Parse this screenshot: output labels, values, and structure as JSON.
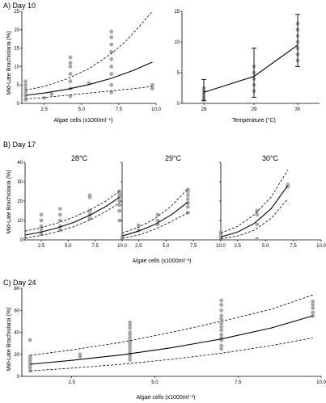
{
  "panels": {
    "A": {
      "label": "A) Day 10"
    },
    "B": {
      "label": "B) Day 17"
    },
    "C": {
      "label": "C) Day 24"
    }
  },
  "chart_data": [
    {
      "type": "scatter",
      "ylabel": "Mid-Late Brachiolaria (%)",
      "xlabel": "Algae cells (x1000ml⁻¹)",
      "xlim": [
        1.0,
        10.0
      ],
      "ylim": [
        0,
        25
      ],
      "xticks": [
        "2.5",
        "5.0",
        "7.5",
        "10.0"
      ],
      "yticks": [
        "0",
        "5",
        "10",
        "15",
        "20",
        "25"
      ],
      "points": [
        [
          1.25,
          1.0
        ],
        [
          1.25,
          2.0
        ],
        [
          1.25,
          3.0
        ],
        [
          1.25,
          4.0
        ],
        [
          1.25,
          5.0
        ],
        [
          1.25,
          6.0
        ],
        [
          2.5,
          1.5
        ],
        [
          3.0,
          2.5
        ],
        [
          4.25,
          2.0
        ],
        [
          4.25,
          4.0
        ],
        [
          4.25,
          6.0
        ],
        [
          4.25,
          8.0
        ],
        [
          4.25,
          10.0
        ],
        [
          4.25,
          11.0
        ],
        [
          4.25,
          12.5
        ],
        [
          5.5,
          5.5
        ],
        [
          7.0,
          3.0
        ],
        [
          7.0,
          5.0
        ],
        [
          7.0,
          8.0
        ],
        [
          7.0,
          10.0
        ],
        [
          7.0,
          12.0
        ],
        [
          7.0,
          14.0
        ],
        [
          7.0,
          16.0
        ],
        [
          7.0,
          18.0
        ],
        [
          7.0,
          19.5
        ],
        [
          9.75,
          4.0
        ],
        [
          9.75,
          5.0
        ]
      ],
      "fit": {
        "x": [
          1.25,
          2.5,
          4.0,
          5.5,
          7.0,
          8.5,
          9.75
        ],
        "y": [
          2.2,
          2.8,
          3.8,
          5.1,
          6.8,
          9.0,
          11.2
        ]
      },
      "upper": {
        "x": [
          1.25,
          2.5,
          4.0,
          5.5,
          7.0,
          8.0,
          9.0,
          9.75
        ],
        "y": [
          3.6,
          4.6,
          6.6,
          9.4,
          13.5,
          17.0,
          21.5,
          25.0
        ]
      },
      "lower": {
        "x": [
          1.25,
          2.5,
          4.0,
          5.5,
          7.0,
          8.5,
          9.75
        ],
        "y": [
          1.2,
          1.6,
          2.2,
          2.8,
          3.4,
          4.0,
          4.6
        ]
      }
    },
    {
      "type": "line",
      "xlabel": "Temperature (°C)",
      "categories": [
        "28",
        "29",
        "30"
      ],
      "ylim": [
        0,
        15
      ],
      "yticks": [
        "0",
        "5",
        "10",
        "15"
      ],
      "mean": [
        1.8,
        4.4,
        9.5
      ],
      "err_low": [
        0.5,
        1.0,
        6.0
      ],
      "err_high": [
        3.9,
        9.0,
        14.5
      ],
      "points": [
        [
          0,
          0.5
        ],
        [
          0,
          1.0
        ],
        [
          0,
          1.5
        ],
        [
          0,
          2.0
        ],
        [
          0,
          2.5
        ],
        [
          1,
          2.0
        ],
        [
          1,
          3.0
        ],
        [
          1,
          4.0
        ],
        [
          1,
          5.0
        ],
        [
          1,
          6.0
        ],
        [
          2,
          7.0
        ],
        [
          2,
          8.0
        ],
        [
          2,
          9.0
        ],
        [
          2,
          10.0
        ],
        [
          2,
          11.0
        ],
        [
          2,
          12.0
        ],
        [
          2,
          13.0
        ]
      ]
    },
    {
      "type": "scatter",
      "ylabel": "Mid-Late Brachiolaria (%)",
      "xlabel": "Algae cells (x1000ml⁻¹)",
      "subplots": [
        {
          "label": "28°C",
          "xlim": [
            1.0,
            10.0
          ],
          "xticks": [
            "2.5",
            "5.0",
            "7.5",
            "10.0"
          ],
          "points": [
            [
              1.0,
              0.5
            ],
            [
              2.5,
              3.0
            ],
            [
              2.5,
              5.0
            ],
            [
              2.5,
              7.0
            ],
            [
              2.5,
              10.0
            ],
            [
              2.5,
              13.0
            ],
            [
              4.25,
              5.0
            ],
            [
              4.25,
              7.0
            ],
            [
              4.25,
              10.0
            ],
            [
              4.25,
              13.0
            ],
            [
              4.25,
              16.0
            ],
            [
              7.0,
              11.0
            ],
            [
              7.0,
              13.0
            ],
            [
              7.0,
              15.0
            ],
            [
              7.0,
              22.0
            ],
            [
              7.0,
              23.0
            ],
            [
              9.75,
              10.0
            ],
            [
              9.75,
              15.0
            ],
            [
              9.75,
              18.0
            ],
            [
              9.75,
              20.0
            ],
            [
              9.75,
              22.0
            ],
            [
              9.75,
              23.0
            ],
            [
              9.75,
              24.0
            ],
            [
              9.75,
              25.0
            ]
          ],
          "fit": {
            "x": [
              1.0,
              2.5,
              4.0,
              5.5,
              7.0,
              8.5,
              9.75
            ],
            "y": [
              2.5,
              4.0,
              6.2,
              9.0,
              12.7,
              17.3,
              22.0
            ]
          },
          "upper": {
            "x": [
              1.0,
              2.5,
              4.0,
              5.5,
              7.0,
              8.5,
              9.75
            ],
            "y": [
              4.5,
              6.3,
              8.7,
              11.7,
              15.4,
              20.0,
              25.2
            ]
          },
          "lower": {
            "x": [
              1.0,
              2.5,
              4.0,
              5.5,
              7.0,
              8.5,
              9.75
            ],
            "y": [
              1.0,
              2.3,
              4.2,
              6.8,
              10.2,
              14.7,
              19.0
            ]
          }
        },
        {
          "label": "29°C",
          "xlim": [
            1.0,
            10.0
          ],
          "xticks": [
            "2.5",
            "5.0",
            "7.5",
            "10.0"
          ],
          "points": [
            [
              1.0,
              1.0
            ],
            [
              2.5,
              5.0
            ],
            [
              2.5,
              7.5
            ],
            [
              4.25,
              8.0
            ],
            [
              4.25,
              10.0
            ],
            [
              4.25,
              13.0
            ],
            [
              7.0,
              14.0
            ],
            [
              7.0,
              17.0
            ],
            [
              7.0,
              19.0
            ],
            [
              7.0,
              21.0
            ],
            [
              7.0,
              23.0
            ],
            [
              7.0,
              25.0
            ],
            [
              7.0,
              26.0
            ]
          ],
          "fit": {
            "x": [
              1.0,
              2.5,
              4.0,
              5.5,
              7.0
            ],
            "y": [
              2.0,
              4.5,
              8.0,
              13.0,
              19.5
            ]
          },
          "upper": {
            "x": [
              1.0,
              2.5,
              4.0,
              5.5,
              7.0
            ],
            "y": [
              3.5,
              6.5,
              11.0,
              17.5,
              26.5
            ]
          },
          "lower": {
            "x": [
              1.0,
              2.5,
              4.0,
              5.5,
              7.0
            ],
            "y": [
              0.8,
              2.5,
              5.5,
              9.5,
              14.0
            ]
          }
        },
        {
          "label": "30°C",
          "xlim": [
            1.0,
            10.0
          ],
          "xticks": [
            "2.5",
            "5.0",
            "7.5",
            "10.0"
          ],
          "points": [
            [
              1.0,
              1.0
            ],
            [
              1.0,
              2.0
            ],
            [
              1.0,
              3.0
            ],
            [
              1.0,
              4.0
            ],
            [
              4.25,
              0.5
            ],
            [
              4.25,
              8.0
            ],
            [
              4.25,
              13.0
            ],
            [
              4.25,
              15.0
            ],
            [
              7.0,
              27.5
            ],
            [
              7.0,
              28.0
            ],
            [
              7.0,
              28.5
            ]
          ],
          "fit": {
            "x": [
              1.0,
              2.5,
              4.0,
              5.5,
              7.0
            ],
            "y": [
              1.5,
              4.0,
              8.5,
              16.0,
              28.0
            ]
          },
          "upper": {
            "x": [
              1.0,
              2.5,
              4.0,
              5.5,
              7.0
            ],
            "y": [
              3.5,
              7.0,
              13.0,
              22.0,
              36.0
            ]
          },
          "lower": {
            "x": [
              1.0,
              2.5,
              4.0,
              5.5,
              7.0
            ],
            "y": [
              0.5,
              2.0,
              5.0,
              11.0,
              21.0
            ]
          }
        }
      ],
      "ylim": [
        0,
        40
      ],
      "yticks": [
        "0",
        "10",
        "20",
        "30",
        "40"
      ]
    },
    {
      "type": "scatter",
      "ylabel": "Mid-Late Brachiolaria (%)",
      "xlabel": "Algae cells (x1000ml⁻¹)",
      "xlim": [
        1.0,
        10.0
      ],
      "ylim": [
        0,
        80
      ],
      "xticks": [
        "2.5",
        "5.0",
        "7.5",
        "10.0"
      ],
      "yticks": [
        "0",
        "20",
        "40",
        "60",
        "80"
      ],
      "points": [
        [
          1.25,
          5.0
        ],
        [
          1.25,
          8.0
        ],
        [
          1.25,
          10.0
        ],
        [
          1.25,
          12.0
        ],
        [
          1.25,
          14.0
        ],
        [
          1.25,
          16.0
        ],
        [
          1.25,
          18.0
        ],
        [
          1.25,
          33.0
        ],
        [
          2.75,
          18.0
        ],
        [
          2.75,
          20.0
        ],
        [
          4.25,
          15.0
        ],
        [
          4.25,
          18.0
        ],
        [
          4.25,
          20.0
        ],
        [
          4.25,
          22.0
        ],
        [
          4.25,
          25.0
        ],
        [
          4.25,
          28.0
        ],
        [
          4.25,
          30.0
        ],
        [
          4.25,
          32.0
        ],
        [
          4.25,
          35.0
        ],
        [
          4.25,
          38.0
        ],
        [
          4.25,
          40.0
        ],
        [
          4.25,
          44.0
        ],
        [
          4.25,
          47.0
        ],
        [
          4.25,
          49.0
        ],
        [
          7.0,
          25.0
        ],
        [
          7.0,
          28.0
        ],
        [
          7.0,
          33.0
        ],
        [
          7.0,
          35.0
        ],
        [
          7.0,
          38.0
        ],
        [
          7.0,
          42.0
        ],
        [
          7.0,
          45.0
        ],
        [
          7.0,
          48.0
        ],
        [
          7.0,
          52.0
        ],
        [
          7.0,
          55.0
        ],
        [
          7.0,
          60.0
        ],
        [
          7.0,
          65.0
        ],
        [
          7.0,
          69.0
        ],
        [
          9.75,
          55.0
        ],
        [
          9.75,
          58.0
        ],
        [
          9.75,
          62.0
        ],
        [
          9.75,
          65.0
        ],
        [
          9.75,
          68.0
        ]
      ],
      "fit": {
        "x": [
          1.25,
          2.5,
          4.0,
          5.5,
          7.0,
          8.5,
          9.75
        ],
        "y": [
          11.0,
          14.5,
          19.5,
          26.0,
          34.0,
          44.0,
          55.0
        ]
      },
      "upper": {
        "x": [
          1.25,
          2.5,
          4.0,
          5.5,
          7.0,
          8.5,
          9.75
        ],
        "y": [
          19.0,
          24.0,
          31.0,
          40.0,
          50.0,
          61.0,
          74.0
        ]
      },
      "lower": {
        "x": [
          1.25,
          2.5,
          4.0,
          5.5,
          7.0,
          8.5,
          9.75
        ],
        "y": [
          5.0,
          7.5,
          11.0,
          15.5,
          21.0,
          28.0,
          35.0
        ]
      }
    }
  ]
}
